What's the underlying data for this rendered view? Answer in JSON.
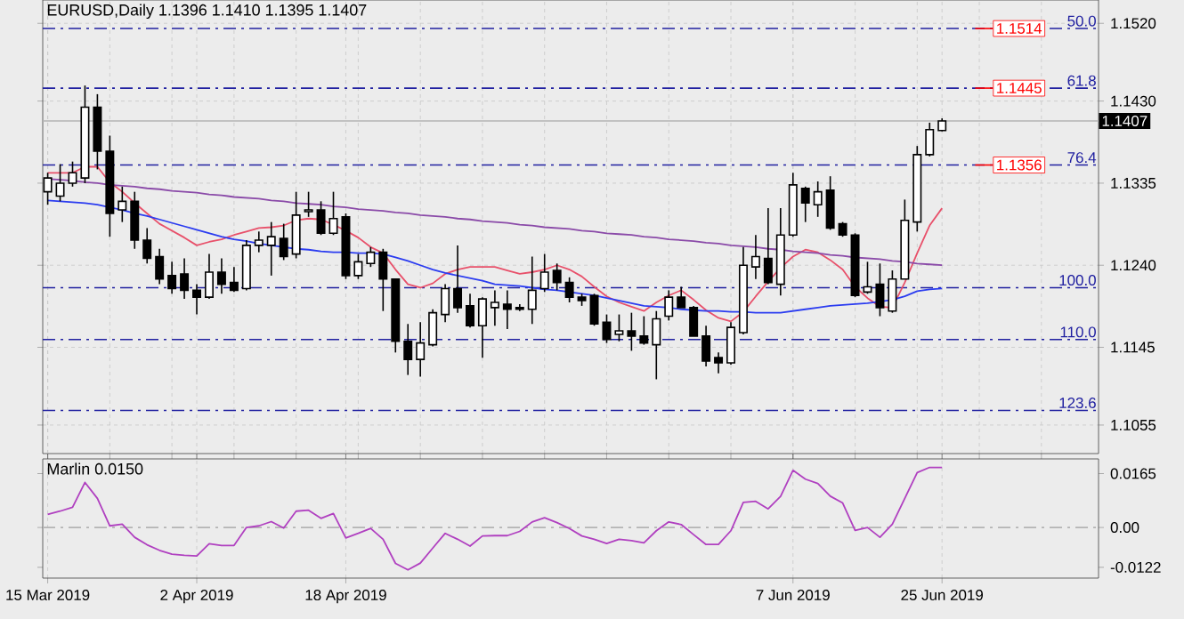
{
  "chart_data": [
    {
      "type": "candlestick",
      "title": "EURUSD,Daily 1.1396 1.1410 1.1395 1.1407",
      "categories": [
        null,
        null,
        null,
        null,
        null,
        null,
        null,
        null,
        null,
        null,
        null,
        null,
        null,
        null,
        null,
        null,
        null,
        null,
        null,
        null,
        null,
        null,
        null,
        null,
        null,
        null,
        null,
        null,
        null,
        null,
        null,
        null,
        null,
        null,
        null,
        null,
        null,
        null,
        null,
        null,
        null,
        null,
        null,
        null,
        null,
        null,
        null,
        null,
        null,
        null,
        null,
        null,
        null,
        null,
        null,
        null,
        null,
        null,
        null,
        null,
        null,
        null,
        null,
        null,
        null,
        null,
        null,
        null,
        null,
        null,
        null,
        null,
        null
      ],
      "ohlc": [
        [
          1.1325,
          1.1347,
          1.131,
          1.1341
        ],
        [
          1.132,
          1.1357,
          1.1314,
          1.1335
        ],
        [
          1.1335,
          1.136,
          1.1331,
          1.1347
        ],
        [
          1.1341,
          1.1448,
          1.1335,
          1.1423
        ],
        [
          1.1423,
          1.1438,
          1.1351,
          1.1372
        ],
        [
          1.1372,
          1.139,
          1.1273,
          1.13
        ],
        [
          1.1304,
          1.1331,
          1.129,
          1.1314
        ],
        [
          1.1314,
          1.1325,
          1.1259,
          1.1269
        ],
        [
          1.1269,
          1.1283,
          1.1242,
          1.1248
        ],
        [
          1.125,
          1.1259,
          1.1218,
          1.1224
        ],
        [
          1.1228,
          1.1244,
          1.1207,
          1.1213
        ],
        [
          1.123,
          1.1248,
          1.1201,
          1.1211
        ],
        [
          1.1211,
          1.1218,
          1.1183,
          1.1203
        ],
        [
          1.1203,
          1.1253,
          1.1201,
          1.1232
        ],
        [
          1.1232,
          1.1248,
          1.1207,
          1.1218
        ],
        [
          1.122,
          1.1238,
          1.1209,
          1.1211
        ],
        [
          1.1213,
          1.1269,
          1.1211,
          1.1263
        ],
        [
          1.1263,
          1.1279,
          1.1255,
          1.1269
        ],
        [
          1.1263,
          1.129,
          1.1228,
          1.1273
        ],
        [
          1.1271,
          1.1288,
          1.1246,
          1.125
        ],
        [
          1.1253,
          1.1325,
          1.1248,
          1.1298
        ],
        [
          1.1302,
          1.1325,
          1.1296,
          1.1304
        ],
        [
          1.1304,
          1.1314,
          1.1275,
          1.1277
        ],
        [
          1.1277,
          1.1325,
          1.1275,
          1.1294
        ],
        [
          1.1296,
          1.13,
          1.1224,
          1.1228
        ],
        [
          1.1228,
          1.1253,
          1.1224,
          1.1244
        ],
        [
          1.1242,
          1.1261,
          1.1238,
          1.1255
        ],
        [
          1.1255,
          1.1259,
          1.1187,
          1.1224
        ],
        [
          1.1224,
          1.1224,
          1.1139,
          1.1152
        ],
        [
          1.1152,
          1.1172,
          1.1113,
          1.1131
        ],
        [
          1.1131,
          1.1174,
          1.1111,
          1.115
        ],
        [
          1.1148,
          1.1189,
          1.1146,
          1.1185
        ],
        [
          1.1183,
          1.1218,
          1.1174,
          1.1213
        ],
        [
          1.1213,
          1.1263,
          1.1185,
          1.1191
        ],
        [
          1.1193,
          1.1207,
          1.1168,
          1.117
        ],
        [
          1.117,
          1.1203,
          1.1133,
          1.1201
        ],
        [
          1.1191,
          1.1211,
          1.117,
          1.1197
        ],
        [
          1.1195,
          1.1211,
          1.1166,
          1.1189
        ],
        [
          1.1191,
          1.1195,
          1.1187,
          1.1189
        ],
        [
          1.1189,
          1.125,
          1.1172,
          1.1211
        ],
        [
          1.1213,
          1.1253,
          1.1209,
          1.1232
        ],
        [
          1.1234,
          1.1242,
          1.1211,
          1.122
        ],
        [
          1.122,
          1.1226,
          1.1197,
          1.1203
        ],
        [
          1.1203,
          1.1207,
          1.1193,
          1.1199
        ],
        [
          1.1205,
          1.1207,
          1.117,
          1.1172
        ],
        [
          1.1174,
          1.1183,
          1.115,
          1.1154
        ],
        [
          1.116,
          1.1183,
          1.1152,
          1.1164
        ],
        [
          1.1164,
          1.1185,
          1.1141,
          1.1158
        ],
        [
          1.1158,
          1.1181,
          1.1148,
          1.115
        ],
        [
          1.1148,
          1.1187,
          1.1108,
          1.1178
        ],
        [
          1.1181,
          1.1211,
          1.1176,
          1.1203
        ],
        [
          1.1203,
          1.1215,
          1.1191,
          1.1191
        ],
        [
          1.1191,
          1.1193,
          1.1158,
          1.1158
        ],
        [
          1.1158,
          1.117,
          1.1123,
          1.1129
        ],
        [
          1.1133,
          1.1139,
          1.1115,
          1.1127
        ],
        [
          1.1127,
          1.1174,
          1.1125,
          1.1168
        ],
        [
          1.1162,
          1.1261,
          1.116,
          1.124
        ],
        [
          1.1238,
          1.1275,
          1.1224,
          1.125
        ],
        [
          1.1248,
          1.1306,
          1.1218,
          1.122
        ],
        [
          1.1218,
          1.1306,
          1.1205,
          1.1275
        ],
        [
          1.1275,
          1.1347,
          1.1273,
          1.1333
        ],
        [
          1.1329,
          1.1331,
          1.129,
          1.1312
        ],
        [
          1.131,
          1.1337,
          1.1296,
          1.1325
        ],
        [
          1.1327,
          1.1343,
          1.1281,
          1.1283
        ],
        [
          1.1288,
          1.129,
          1.1273,
          1.1275
        ],
        [
          1.1275,
          1.1277,
          1.1203,
          1.1205
        ],
        [
          1.1209,
          1.1244,
          1.1207,
          1.1215
        ],
        [
          1.1218,
          1.1242,
          1.1181,
          1.1191
        ],
        [
          1.1187,
          1.1234,
          1.1185,
          1.1224
        ],
        [
          1.1224,
          1.1316,
          1.1224,
          1.1292
        ],
        [
          1.129,
          1.1378,
          1.1279,
          1.1368
        ],
        [
          1.1368,
          1.1405,
          1.1366,
          1.1397
        ],
        [
          1.1396,
          1.141,
          1.1395,
          1.1407
        ]
      ],
      "series": [
        {
          "type": "line",
          "color": "#e8506a",
          "values": [
            1.1347,
            1.1347,
            1.1347,
            1.1354,
            1.1354,
            1.1336,
            1.1325,
            1.1312,
            1.13,
            1.1288,
            1.128,
            1.1272,
            1.1263,
            1.1267,
            1.127,
            1.1275,
            1.1279,
            1.1283,
            1.1284,
            1.1286,
            1.1292,
            1.1294,
            1.1293,
            1.1287,
            1.128,
            1.1272,
            1.1261,
            1.1254,
            1.1235,
            1.1218,
            1.1214,
            1.1219,
            1.123,
            1.1235,
            1.1238,
            1.1238,
            1.1238,
            1.1234,
            1.123,
            1.1232,
            1.1235,
            1.124,
            1.1235,
            1.1227,
            1.1215,
            1.1204,
            1.1197,
            1.1192,
            1.1187,
            1.1197,
            1.1205,
            1.1211,
            1.12,
            1.1188,
            1.1179,
            1.1175,
            1.1186,
            1.1204,
            1.1221,
            1.1237,
            1.125,
            1.1258,
            1.1255,
            1.1246,
            1.1235,
            1.1215,
            1.1202,
            1.1192,
            1.1191,
            1.122,
            1.1254,
            1.1286,
            1.1306
          ]
        },
        {
          "type": "line",
          "color": "#2b3cf0",
          "values": [
            1.1315,
            1.1314,
            1.1313,
            1.1312,
            1.131,
            1.1307,
            1.1304,
            1.13,
            1.1297,
            1.1293,
            1.1289,
            1.1285,
            1.1281,
            1.1277,
            1.1273,
            1.127,
            1.1268,
            1.1265,
            1.1263,
            1.1261,
            1.1259,
            1.1258,
            1.1256,
            1.1255,
            1.1255,
            1.1254,
            1.1254,
            1.1253,
            1.1249,
            1.1245,
            1.124,
            1.1235,
            1.1231,
            1.1228,
            1.1225,
            1.1222,
            1.1218,
            1.1217,
            1.1216,
            1.1214,
            1.1212,
            1.1211,
            1.1209,
            1.1207,
            1.1205,
            1.1202,
            1.1199,
            1.1196,
            1.1193,
            1.1192,
            1.1191,
            1.1189,
            1.1188,
            1.1187,
            1.1187,
            1.1186,
            1.1186,
            1.1185,
            1.1185,
            1.1185,
            1.1187,
            1.1189,
            1.1191,
            1.1193,
            1.1194,
            1.1195,
            1.1196,
            1.1198,
            1.12,
            1.1204,
            1.121,
            1.1212,
            1.1213
          ]
        },
        {
          "type": "line",
          "color": "#8a4aa8",
          "values": [
            1.134,
            1.1339,
            1.1338,
            1.1336,
            1.1335,
            1.1333,
            1.1332,
            1.1331,
            1.1329,
            1.1328,
            1.1326,
            1.1325,
            1.1324,
            1.1322,
            1.1321,
            1.1319,
            1.1318,
            1.1317,
            1.1315,
            1.1314,
            1.1312,
            1.1311,
            1.131,
            1.1308,
            1.1307,
            1.1305,
            1.1304,
            1.1303,
            1.1301,
            1.13,
            1.1298,
            1.1297,
            1.1296,
            1.1294,
            1.1293,
            1.1291,
            1.129,
            1.1289,
            1.1287,
            1.1286,
            1.1284,
            1.1283,
            1.1282,
            1.128,
            1.1279,
            1.1277,
            1.1276,
            1.1275,
            1.1273,
            1.1272,
            1.127,
            1.1269,
            1.1268,
            1.1266,
            1.1265,
            1.1263,
            1.1262,
            1.1261,
            1.1259,
            1.1258,
            1.1256,
            1.1255,
            1.1254,
            1.1252,
            1.1251,
            1.1249,
            1.1248,
            1.1247,
            1.1245,
            1.1244,
            1.1242,
            1.1241,
            1.124
          ]
        }
      ],
      "ylim": [
        1.1022,
        1.1547
      ],
      "yticks": [
        {
          "value": 1.152,
          "label": "1.1520"
        },
        {
          "value": 1.143,
          "label": "1.1430"
        },
        1.1335,
        {
          "value": 1.124,
          "label": "1.1240"
        },
        1.1145,
        1.1055
      ],
      "grid": true,
      "ref_lines": [
        {
          "axis": "y",
          "value": 1.1514,
          "label": "1.1514",
          "color": "#2020a0",
          "line_style": "dashed"
        },
        {
          "axis": "y",
          "value": 1.1445,
          "label": "1.1445",
          "color": "#2020a0",
          "line_style": "dashed"
        },
        {
          "axis": "y",
          "value": 1.1356,
          "label": "1.1356",
          "color": "#2020a0",
          "line_style": "dashed"
        },
        {
          "axis": "y",
          "value": 1.1214,
          "color": "#2020a0",
          "line_style": "dashed"
        },
        {
          "axis": "y",
          "value": 1.1154,
          "color": "#2020a0",
          "line_style": "dashed"
        },
        {
          "axis": "y",
          "value": 1.1072,
          "color": "#2020a0",
          "line_style": "dashed"
        },
        {
          "axis": "y",
          "value": 1.1407,
          "label": "1.1407",
          "color": "#b4b4b4",
          "line_style": "solid"
        }
      ],
      "annotations": [
        {
          "text": "50.0",
          "y": 1.1514
        },
        {
          "text": "61.8",
          "y": 1.1445
        },
        {
          "text": "76.4",
          "y": 1.1356
        },
        {
          "text": "100.0",
          "y": 1.1214
        },
        {
          "text": "110.0",
          "y": 1.1154
        },
        {
          "text": "123.6",
          "y": 1.1072
        }
      ]
    },
    {
      "type": "line",
      "title": "Marlin 0.0150",
      "color": "#b040c0",
      "categories": [
        "15 Mar 2019",
        null,
        null,
        null,
        null,
        null,
        null,
        null,
        null,
        null,
        null,
        null,
        "2 Apr 2019",
        null,
        null,
        null,
        null,
        null,
        null,
        null,
        null,
        null,
        null,
        null,
        "18 Apr 2019",
        null,
        null,
        null,
        null,
        null,
        null,
        null,
        null,
        null,
        null,
        null,
        null,
        null,
        null,
        null,
        null,
        null,
        null,
        null,
        null,
        null,
        null,
        null,
        null,
        null,
        null,
        null,
        null,
        null,
        null,
        null,
        null,
        null,
        null,
        null,
        "7 Jun 2019",
        null,
        null,
        null,
        null,
        null,
        null,
        null,
        null,
        null,
        null,
        null,
        "25 Jun 2019"
      ],
      "values": [
        0.004,
        0.005,
        0.0062,
        0.0138,
        0.0089,
        0.0005,
        0.001,
        -0.003,
        -0.0053,
        -0.007,
        -0.0082,
        -0.0085,
        -0.0087,
        -0.005,
        -0.0055,
        -0.0055,
        0.0,
        0.0005,
        0.0018,
        -0.0002,
        0.005,
        0.0053,
        0.0028,
        0.0043,
        -0.0032,
        -0.0018,
        -0.0003,
        -0.0036,
        -0.011,
        -0.013,
        -0.0109,
        -0.0063,
        -0.0018,
        -0.0036,
        -0.0057,
        -0.0026,
        -0.0025,
        -0.0025,
        -0.0012,
        0.0017,
        0.003,
        0.0015,
        -0.0003,
        -0.0026,
        -0.0036,
        -0.0049,
        -0.0036,
        -0.004,
        -0.0047,
        -0.001,
        0.0017,
        0.0009,
        -0.0022,
        -0.0052,
        -0.0052,
        -0.001,
        0.0077,
        0.008,
        0.0057,
        0.0095,
        0.0175,
        0.0148,
        0.0135,
        0.0096,
        0.0075,
        -0.0009,
        0.0,
        -0.003,
        0.001,
        0.0089,
        0.0168,
        0.0184,
        0.0184
      ],
      "ylim": [
        -0.0155,
        0.021
      ],
      "yticks": [
        0.0165,
        {
          "value": 0,
          "label": "0.00"
        },
        -0.0122
      ],
      "grid": "x",
      "ref_lines": [
        {
          "axis": "y",
          "value": 0,
          "color": "#b4b4b4",
          "line_style": "dashed"
        }
      ]
    }
  ]
}
